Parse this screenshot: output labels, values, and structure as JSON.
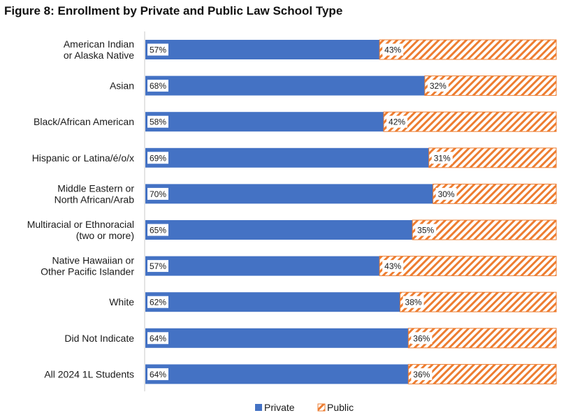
{
  "title": "Figure 8: Enrollment by Private and Public Law School Type",
  "colors": {
    "private": "#4472c4",
    "public": "#ed7d31",
    "axis": "#c8c8c8"
  },
  "chart_data": {
    "type": "bar",
    "orientation": "horizontal",
    "stacked": true,
    "stack_mode": "percent",
    "title": "Figure 8: Enrollment by Private and Public Law School Type",
    "categories": [
      [
        "American Indian",
        "or Alaska Native"
      ],
      [
        "Asian"
      ],
      [
        "Black/African American"
      ],
      [
        "Hispanic or Latina/é/o/x"
      ],
      [
        "Middle Eastern or",
        "North African/Arab"
      ],
      [
        "Multiracial or Ethnoracial",
        "(two or more)"
      ],
      [
        "Native Hawaiian or",
        "Other Pacific Islander"
      ],
      [
        "White"
      ],
      [
        "Did Not Indicate"
      ],
      [
        "All 2024 1L Students"
      ]
    ],
    "series": [
      {
        "name": "Private",
        "values": [
          57,
          68,
          58,
          69,
          70,
          65,
          57,
          62,
          64,
          64
        ],
        "fill": "solid"
      },
      {
        "name": "Public",
        "values": [
          43,
          32,
          42,
          31,
          30,
          35,
          43,
          38,
          36,
          36
        ],
        "fill": "diagonal-hatch"
      }
    ],
    "value_suffix": "%",
    "xlim": [
      0,
      100
    ],
    "grid": false,
    "legend": "bottom"
  }
}
